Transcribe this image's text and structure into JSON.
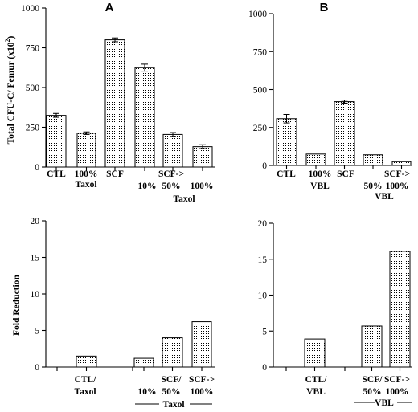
{
  "chart_data": [
    {
      "type": "bar",
      "panel_label": "A",
      "ylabel": "Total CFU-C/ Femur (x10",
      "ylabel_sup": "2",
      "ylabel_close": ")",
      "ylim": [
        0,
        1000
      ],
      "yticks": [
        "0",
        "250",
        "500",
        "750",
        "1000"
      ],
      "categories": [
        "CTL",
        "100% Taxol",
        "SCF",
        "SCF-> 10%",
        "SCF-> 50%",
        "SCF-> 100%"
      ],
      "values": [
        325,
        213,
        800,
        625,
        205,
        128
      ],
      "errors": [
        12,
        8,
        12,
        22,
        12,
        12
      ],
      "category_labels": [
        {
          "lines": [
            "CTL"
          ]
        },
        {
          "lines": [
            "100%",
            "Taxol"
          ]
        },
        {
          "lines": [
            "SCF"
          ]
        },
        {
          "lines": [
            "10%"
          ]
        },
        {
          "lines": [
            "SCF->",
            "50%"
          ]
        },
        {
          "lines": [
            "100%"
          ]
        }
      ],
      "group_label": "Taxol",
      "grid": false
    },
    {
      "type": "bar",
      "panel_label": "B",
      "ylim": [
        0,
        1000
      ],
      "yticks": [
        "0",
        "250",
        "500",
        "750",
        "1000"
      ],
      "categories": [
        "CTL",
        "100% VBL",
        "SCF",
        "SCF-> 50%",
        "SCF-> 100%"
      ],
      "values": [
        308,
        75,
        420,
        70,
        25
      ],
      "errors": [
        28,
        0,
        10,
        0,
        0
      ],
      "category_labels": [
        {
          "lines": [
            "CTL"
          ]
        },
        {
          "lines": [
            "100%",
            "VBL"
          ]
        },
        {
          "lines": [
            "SCF"
          ]
        },
        {
          "lines": [
            "50%"
          ]
        },
        {
          "lines": [
            "SCF->",
            "100%"
          ]
        }
      ],
      "group_label": "VBL",
      "grid": false
    },
    {
      "type": "bar",
      "ylabel": "Fold Reduction",
      "ylim": [
        0,
        20
      ],
      "yticks": [
        "0",
        "5",
        "10",
        "15",
        "20"
      ],
      "categories": [
        "CTL/ Taxol",
        "SCF/ 10%",
        "SCF/ 50%",
        "SCF-> 100%"
      ],
      "values": [
        1.5,
        1.2,
        4.0,
        6.2
      ],
      "category_labels": [
        {
          "lines": [
            "CTL/",
            "Taxol"
          ]
        },
        {
          "lines": [
            "10%"
          ]
        },
        {
          "lines": [
            "SCF/",
            "50%"
          ]
        },
        {
          "lines": [
            "SCF->",
            "100%"
          ]
        }
      ],
      "group_label": "Taxol",
      "grid": false
    },
    {
      "type": "bar",
      "ylim": [
        0,
        20
      ],
      "yticks": [
        "0",
        "5",
        "10",
        "15",
        "20"
      ],
      "categories": [
        "CTL/ VBL",
        "SCF/ 50%",
        "SCF-> 100%"
      ],
      "values": [
        3.9,
        5.7,
        16.1
      ],
      "category_labels": [
        {
          "lines": [
            "CTL/",
            "VBL"
          ]
        },
        {
          "lines": [
            "SCF/",
            "50%"
          ]
        },
        {
          "lines": [
            "SCF->",
            "100%"
          ]
        }
      ],
      "group_label": "VBL",
      "grid": false
    }
  ]
}
